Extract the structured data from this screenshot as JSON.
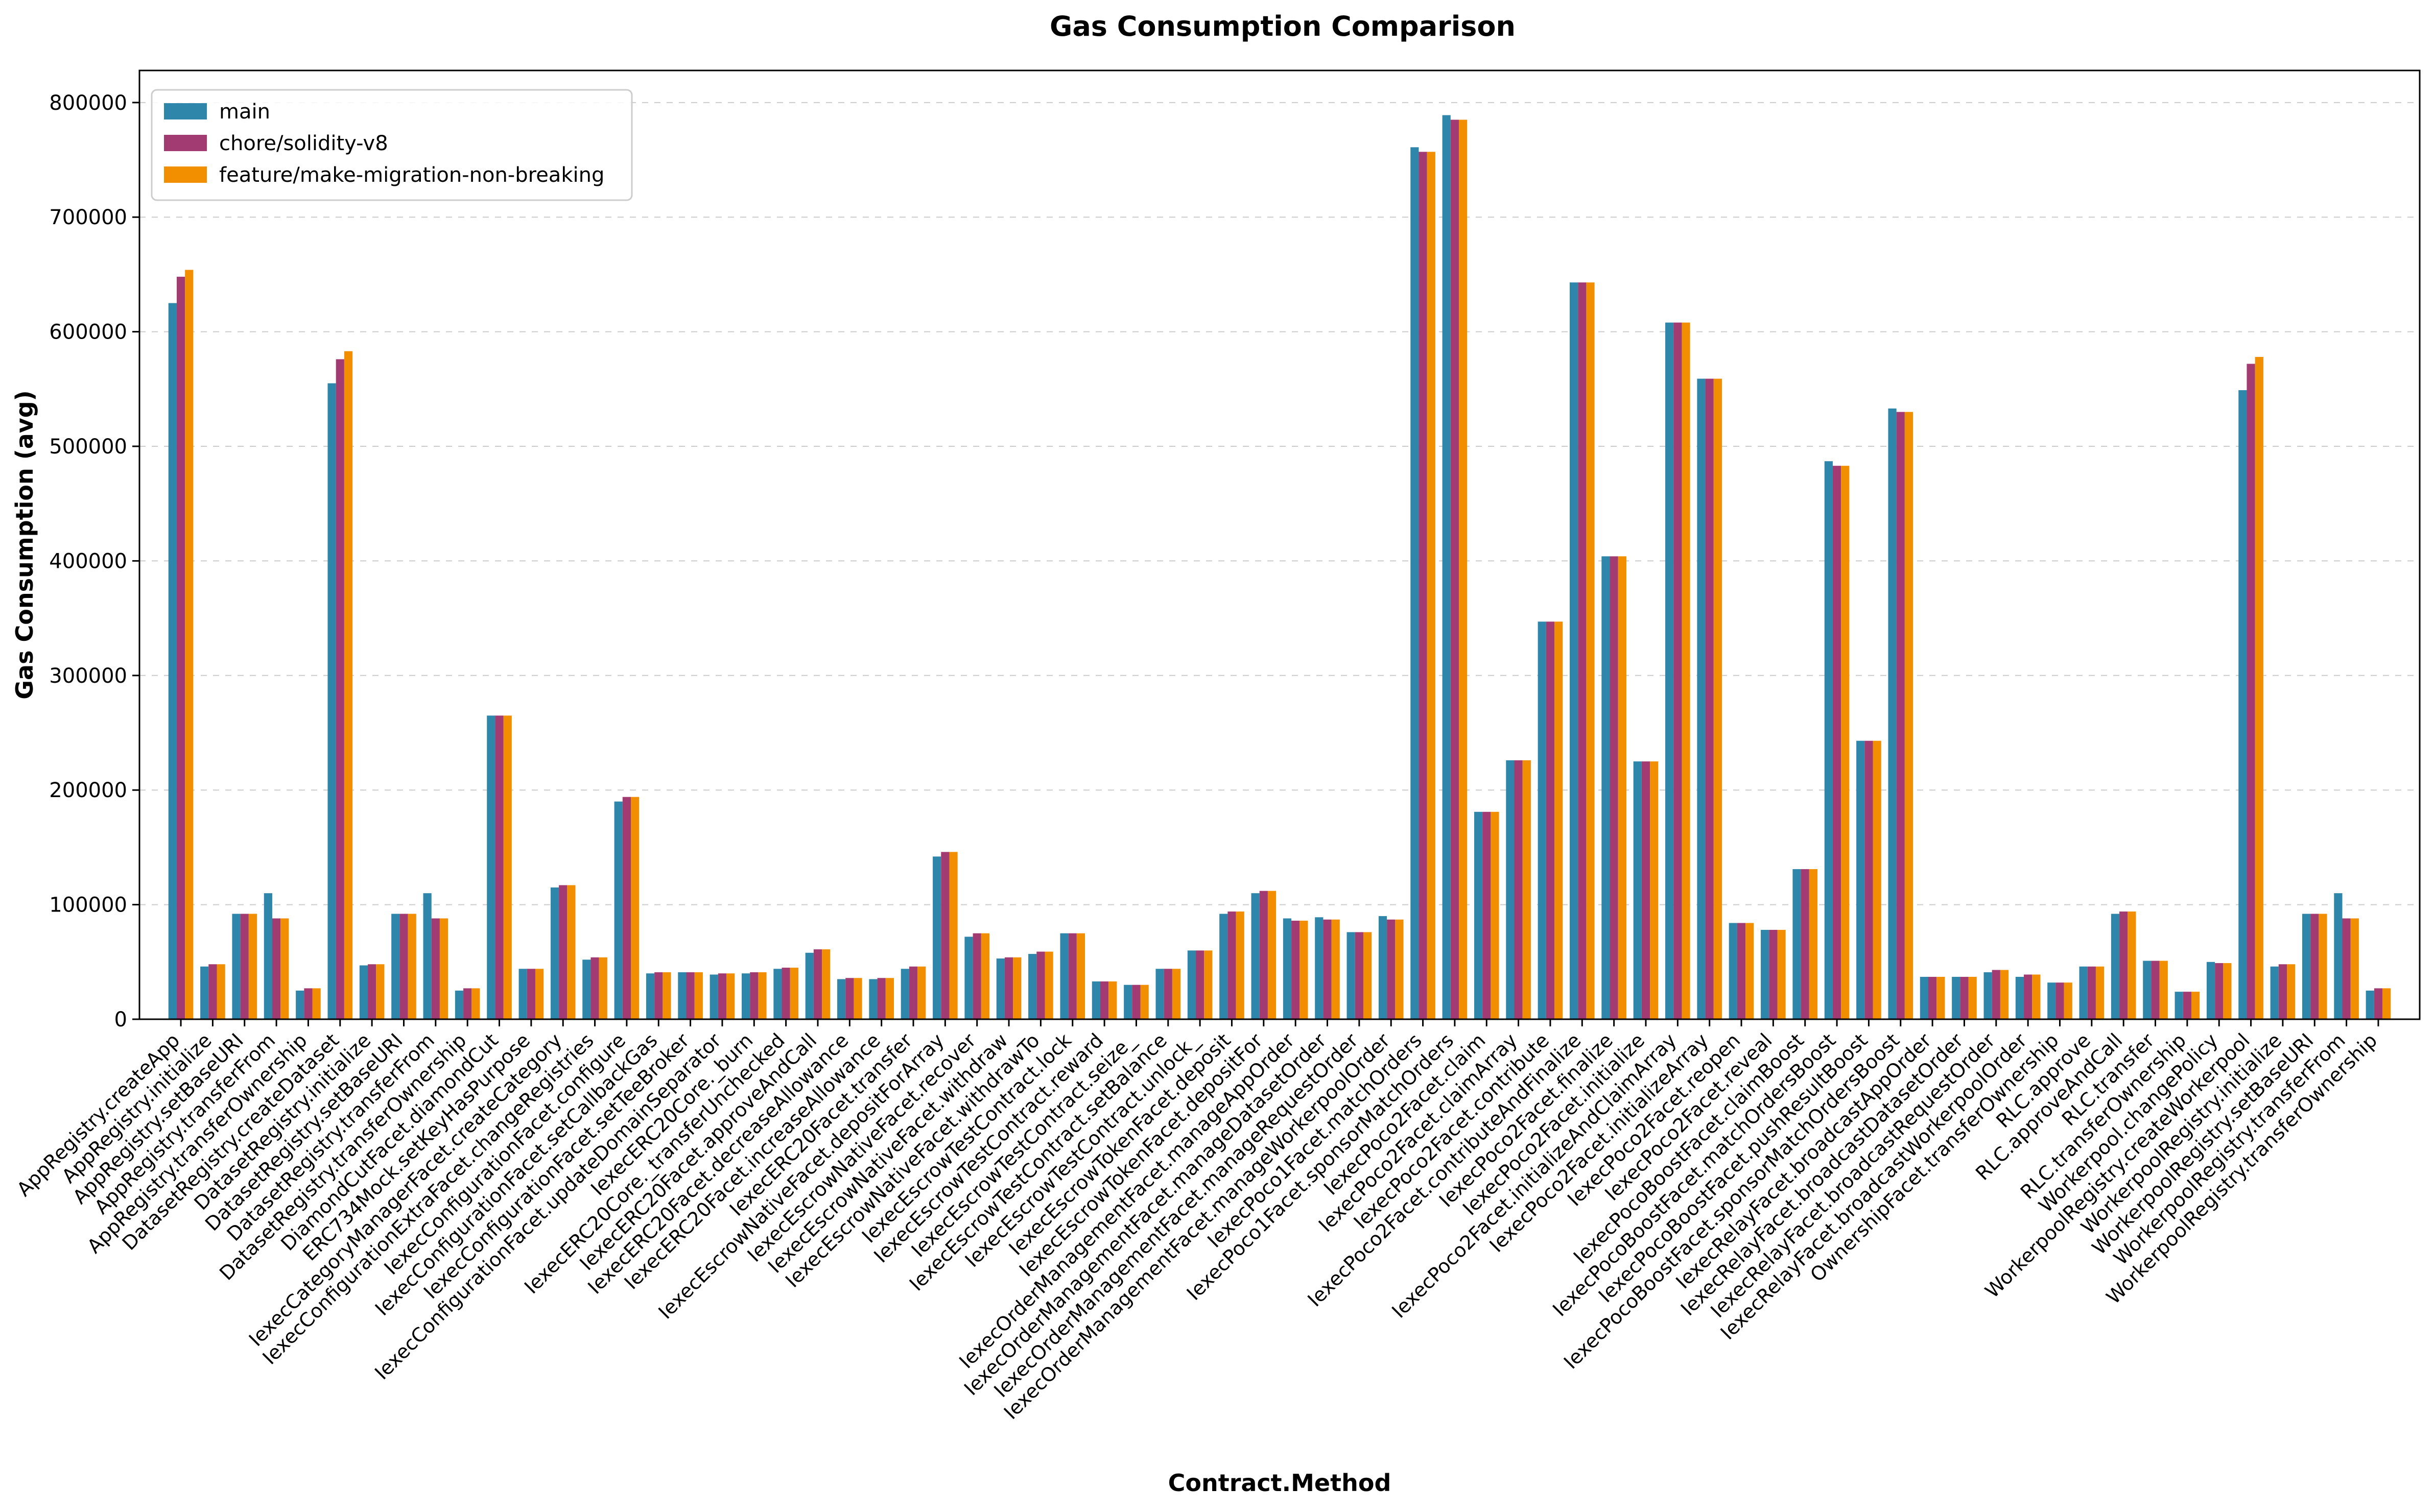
{
  "chart_data": {
    "type": "bar",
    "title": "Gas Consumption Comparison",
    "xlabel": "Contract.Method",
    "ylabel": "Gas Consumption (avg)",
    "ylim": [
      0,
      828000
    ],
    "yticks": [
      0,
      100000,
      200000,
      300000,
      400000,
      500000,
      600000,
      700000,
      800000
    ],
    "grid": "y-dashed",
    "legend_position": "top-left",
    "colors": [
      "#2e86ab",
      "#a23b72",
      "#f18f01"
    ],
    "categories": [
      "AppRegistry.createApp",
      "AppRegistry.initialize",
      "AppRegistry.setBaseURI",
      "AppRegistry.transferFrom",
      "AppRegistry.transferOwnership",
      "DatasetRegistry.createDataset",
      "DatasetRegistry.initialize",
      "DatasetRegistry.setBaseURI",
      "DatasetRegistry.transferFrom",
      "DatasetRegistry.transferOwnership",
      "DiamondCutFacet.diamondCut",
      "ERC734Mock.setKeyHasPurpose",
      "IexecCategoryManagerFacet.createCategory",
      "IexecConfigurationExtraFacet.changeRegistries",
      "IexecConfigurationFacet.configure",
      "IexecConfigurationFacet.setCallbackGas",
      "IexecConfigurationFacet.setTeeBroker",
      "IexecConfigurationFacet.updateDomainSeparator",
      "IexecERC20Core._burn",
      "IexecERC20Core._transferUnchecked",
      "IexecERC20Facet.approveAndCall",
      "IexecERC20Facet.decreaseAllowance",
      "IexecERC20Facet.increaseAllowance",
      "IexecERC20Facet.transfer",
      "IexecEscrowNativeFacet.depositForArray",
      "IexecEscrowNativeFacet.recover",
      "IexecEscrowNativeFacet.withdraw",
      "IexecEscrowNativeFacet.withdrawTo",
      "IexecEscrowTestContract.lock",
      "IexecEscrowTestContract.reward",
      "IexecEscrowTestContract.seize_",
      "IexecEscrowTestContract.setBalance",
      "IexecEscrowTestContract.unlock_",
      "IexecEscrowTokenFacet.deposit",
      "IexecEscrowTokenFacet.depositFor",
      "IexecOrderManagementFacet.manageAppOrder",
      "IexecOrderManagementFacet.manageDatasetOrder",
      "IexecOrderManagementFacet.manageRequestOrder",
      "IexecOrderManagementFacet.manageWorkerpoolOrder",
      "IexecPoco1Facet.matchOrders",
      "IexecPoco1Facet.sponsorMatchOrders",
      "IexecPoco2Facet.claim",
      "IexecPoco2Facet.claimArray",
      "IexecPoco2Facet.contribute",
      "IexecPoco2Facet.contributeAndFinalize",
      "IexecPoco2Facet.finalize",
      "IexecPoco2Facet.initialize",
      "IexecPoco2Facet.initializeAndClaimArray",
      "IexecPoco2Facet.initializeArray",
      "IexecPoco2Facet.reopen",
      "IexecPoco2Facet.reveal",
      "IexecPocoBoostFacet.claimBoost",
      "IexecPocoBoostFacet.matchOrdersBoost",
      "IexecPocoBoostFacet.pushResultBoost",
      "IexecPocoBoostFacet.sponsorMatchOrdersBoost",
      "IexecRelayFacet.broadcastAppOrder",
      "IexecRelayFacet.broadcastDatasetOrder",
      "IexecRelayFacet.broadcastRequestOrder",
      "IexecRelayFacet.broadcastWorkerpoolOrder",
      "OwnershipFacet.transferOwnership",
      "RLC.approve",
      "RLC.approveAndCall",
      "RLC.transfer",
      "RLC.transferOwnership",
      "Workerpool.changePolicy",
      "WorkerpoolRegistry.createWorkerpool",
      "WorkerpoolRegistry.initialize",
      "WorkerpoolRegistry.setBaseURI",
      "WorkerpoolRegistry.transferFrom",
      "WorkerpoolRegistry.transferOwnership"
    ],
    "series": [
      {
        "name": "main",
        "values": [
          625000,
          46000,
          92000,
          110000,
          25000,
          555000,
          47000,
          92000,
          110000,
          25000,
          265000,
          44000,
          115000,
          52000,
          190000,
          40000,
          41000,
          39000,
          40000,
          44000,
          58000,
          35000,
          35000,
          44000,
          142000,
          72000,
          53000,
          57000,
          75000,
          33000,
          30000,
          44000,
          60000,
          92000,
          110000,
          88000,
          89000,
          76000,
          90000,
          761000,
          789000,
          181000,
          226000,
          347000,
          643000,
          404000,
          225000,
          608000,
          559000,
          84000,
          78000,
          131000,
          487000,
          243000,
          533000,
          37000,
          37000,
          41000,
          37000,
          32000,
          46000,
          92000,
          51000,
          24000,
          50000,
          549000,
          46000,
          92000,
          110000,
          25000
        ]
      },
      {
        "name": "chore/solidity-v8",
        "values": [
          648000,
          48000,
          92000,
          88000,
          27000,
          576000,
          48000,
          92000,
          88000,
          27000,
          265000,
          44000,
          117000,
          54000,
          194000,
          41000,
          41000,
          40000,
          41000,
          45000,
          61000,
          36000,
          36000,
          46000,
          146000,
          75000,
          54000,
          59000,
          75000,
          33000,
          30000,
          44000,
          60000,
          94000,
          112000,
          86000,
          87000,
          76000,
          87000,
          757000,
          785000,
          181000,
          226000,
          347000,
          643000,
          404000,
          225000,
          608000,
          559000,
          84000,
          78000,
          131000,
          483000,
          243000,
          530000,
          37000,
          37000,
          43000,
          39000,
          32000,
          46000,
          94000,
          51000,
          24000,
          49000,
          572000,
          48000,
          92000,
          88000,
          27000
        ]
      },
      {
        "name": "feature/make-migration-non-breaking",
        "values": [
          654000,
          48000,
          92000,
          88000,
          27000,
          583000,
          48000,
          92000,
          88000,
          27000,
          265000,
          44000,
          117000,
          54000,
          194000,
          41000,
          41000,
          40000,
          41000,
          45000,
          61000,
          36000,
          36000,
          46000,
          146000,
          75000,
          54000,
          59000,
          75000,
          33000,
          30000,
          44000,
          60000,
          94000,
          112000,
          86000,
          87000,
          76000,
          87000,
          757000,
          785000,
          181000,
          226000,
          347000,
          643000,
          404000,
          225000,
          608000,
          559000,
          84000,
          78000,
          131000,
          483000,
          243000,
          530000,
          37000,
          37000,
          43000,
          39000,
          32000,
          46000,
          94000,
          51000,
          24000,
          49000,
          578000,
          48000,
          92000,
          88000,
          27000
        ]
      }
    ]
  }
}
